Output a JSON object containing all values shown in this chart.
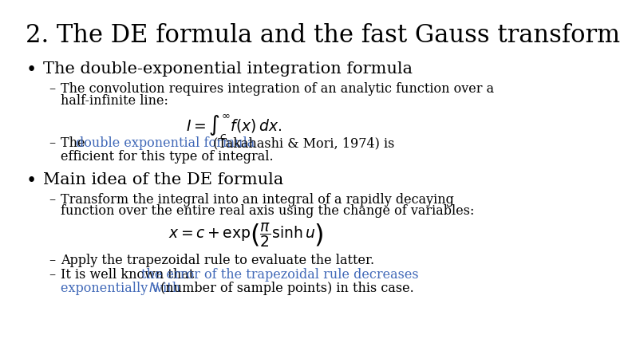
{
  "title": "2. The DE formula and the fast Gauss transform",
  "bg_color": "#ffffff",
  "title_color": "#000000",
  "title_fontsize": 22,
  "body_fontsize": 13,
  "small_fontsize": 11.5,
  "blue_color": "#4169B8",
  "black_color": "#000000",
  "bullet1_header": "The double-exponential integration formula",
  "bullet1_sub1_line1": "The convolution requires integration of an analytic function over a",
  "bullet1_sub1_line2": "half-infinite line:",
  "formula1": "$I = \\int_c^{\\infty} f(x)\\, dx.$",
  "bullet1_sub2_line2": "efficient for this type of integral.",
  "bullet2_header": "Main idea of the DE formula",
  "bullet2_sub1_line1": "Transform the integral into an integral of a rapidly decaying",
  "bullet2_sub1_line2": "function over the entire real axis using the change of variables:",
  "formula2": "$x = c + \\exp\\!\\left(\\dfrac{\\pi}{2} \\sinh u\\right)$",
  "bullet2_sub2": "Apply the trapezoidal rule to evaluate the latter.",
  "bullet2_sub3_black1": "It is well known that ",
  "bullet2_sub3_blue1": "the error of the trapezoidal rule decreases",
  "bullet2_sub3_blue2": "exponentially with ",
  "bullet2_sub3_N": "$N$",
  "bullet2_sub3_end": " (number of sample points) in this case."
}
